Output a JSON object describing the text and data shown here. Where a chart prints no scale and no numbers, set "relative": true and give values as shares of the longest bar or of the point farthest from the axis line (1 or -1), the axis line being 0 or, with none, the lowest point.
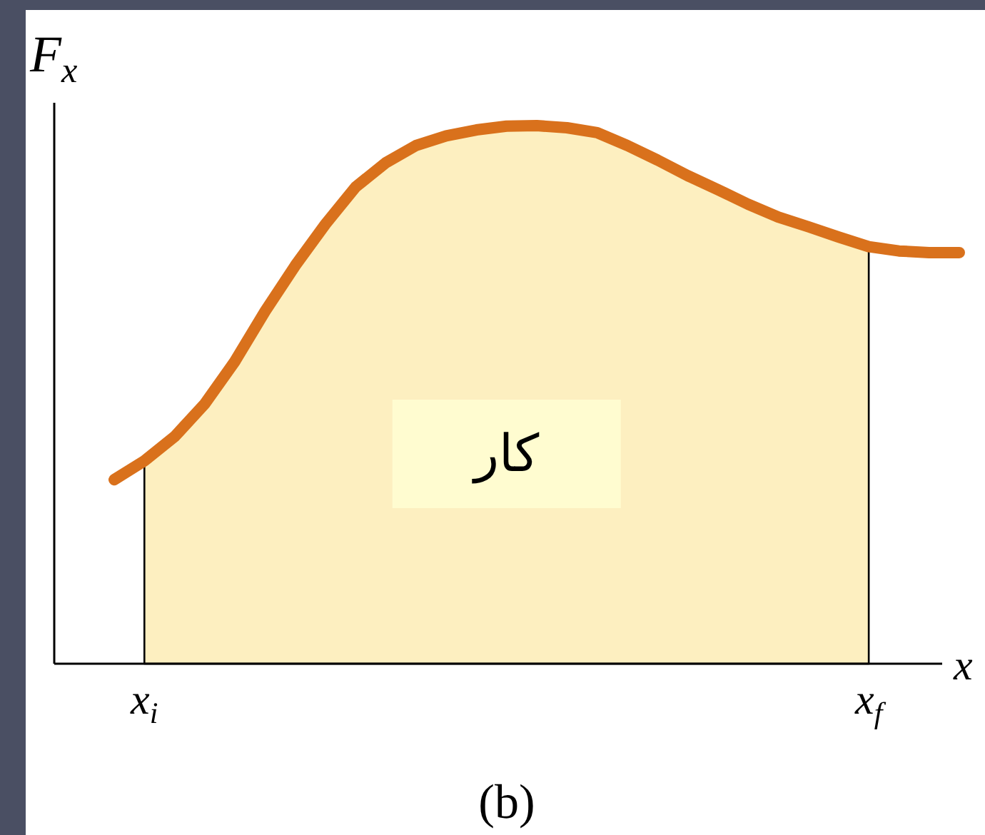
{
  "chart_data": {
    "type": "line",
    "relative": true,
    "ylabel": "F$_{x}$",
    "xlabel": "x",
    "categories": [
      null,
      null,
      null,
      null,
      null,
      null,
      null,
      null,
      null,
      null,
      null,
      null,
      null,
      null,
      null,
      null,
      null,
      null,
      null,
      null,
      null,
      null,
      null,
      null,
      null,
      null,
      null,
      null,
      null
    ],
    "annotations": [
      "x$_{i}$",
      "x$_{f}$",
      "کار",
      "(b)"
    ],
    "series": [
      {
        "type": "area",
        "color": "#fdefc0",
        "values": [
          null,
          0.377,
          0.422,
          0.483,
          0.562,
          0.655,
          0.74,
          0.817,
          0.886,
          0.931,
          0.963,
          0.981,
          0.992,
          0.999,
          1,
          0.996,
          0.987,
          0.963,
          0.936,
          0.907,
          0.881,
          0.854,
          0.83,
          0.812,
          0.793,
          0.775,
          null,
          null,
          null
        ]
      },
      {
        "color": "#d9711c",
        "values": [
          0.342,
          0.377,
          0.422,
          0.483,
          0.562,
          0.655,
          0.74,
          0.817,
          0.886,
          0.931,
          0.963,
          0.981,
          0.992,
          0.999,
          1,
          0.996,
          0.987,
          0.963,
          0.936,
          0.907,
          0.881,
          0.854,
          0.83,
          0.812,
          0.793,
          0.775,
          0.767,
          0.764,
          0.764
        ]
      }
    ]
  }
}
